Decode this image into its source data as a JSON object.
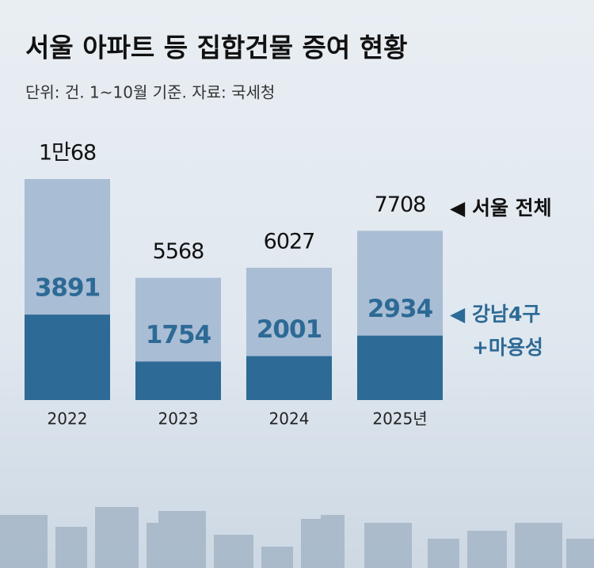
{
  "chart_data": {
    "type": "bar",
    "title": "서울 아파트 등 집합건물 증여 현황",
    "subtitle": "단위: 건. 1~10월 기준. 자료: 국세청",
    "categories": [
      "2022",
      "2023",
      "2024",
      "2025년"
    ],
    "series": [
      {
        "name": "서울 전체",
        "color": "#a9bdd5",
        "label_color": "#111111",
        "values": [
          10068,
          5568,
          6027,
          7708
        ],
        "value_labels": [
          "1만68",
          "5568",
          "6027",
          "7708"
        ]
      },
      {
        "name": "강남4구 +마용성",
        "color": "#2d6a95",
        "label_color": "#2d6a95",
        "values": [
          3891,
          1754,
          2001,
          2934
        ]
      }
    ]
  }
}
